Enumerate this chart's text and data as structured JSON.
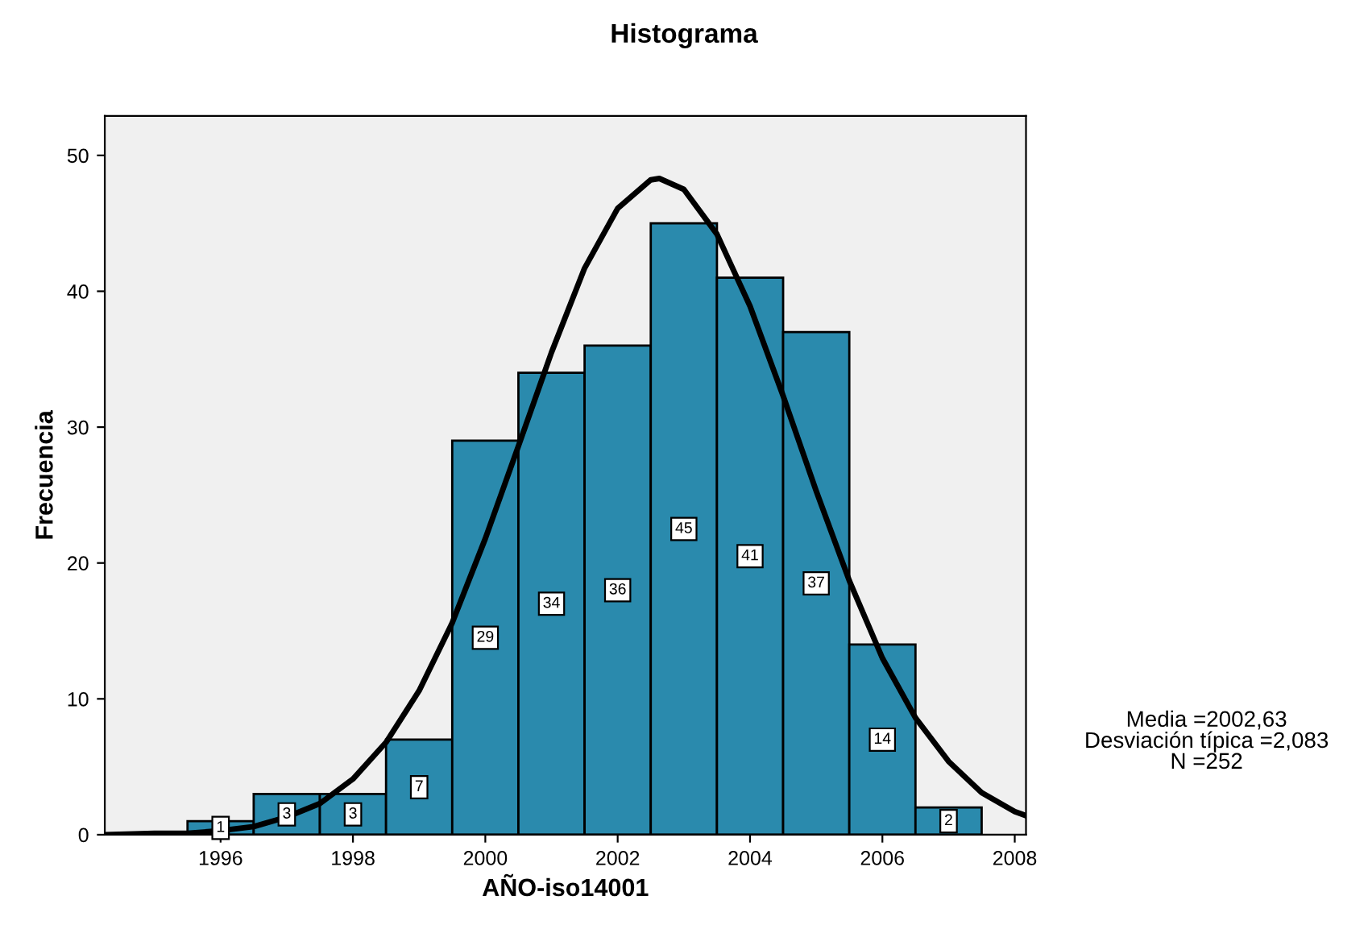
{
  "chart_data": {
    "type": "histogram",
    "title": "Histograma",
    "xlabel": "AÑO-iso14001",
    "ylabel": "Frecuencia",
    "bins": [
      1995.5,
      1996.5,
      1997.5,
      1998.5,
      1999.5,
      2000.5,
      2001.5,
      2002.5,
      2003.5,
      2004.5,
      2005.5,
      2006.5,
      2007.5
    ],
    "series": [
      {
        "color": "#2a8aad",
        "values": [
          1,
          3,
          3,
          7,
          29,
          34,
          36,
          45,
          41,
          37,
          14,
          2
        ],
        "value_labels": [
          "1",
          "3",
          "3",
          "7",
          "29",
          "34",
          "36",
          "45",
          "41",
          "37",
          "14",
          "2"
        ]
      },
      {
        "type": "line",
        "color": "#000000",
        "x": [
          1994.25,
          1995,
          1995.5,
          1996,
          1996.5,
          1997,
          1997.5,
          1998,
          1998.5,
          1999,
          1999.5,
          2000,
          2000.5,
          2001,
          2001.5,
          2002,
          2002.5,
          2002.63,
          2003,
          2003.5,
          2004,
          2004.5,
          2005,
          2005.5,
          2006,
          2006.5,
          2007,
          2007.5,
          2008,
          2008.17
        ],
        "values": [
          0.0,
          0.1,
          0.1,
          0.3,
          0.6,
          1.3,
          2.3,
          4.1,
          6.8,
          10.6,
          15.6,
          21.8,
          28.6,
          35.5,
          41.7,
          46.1,
          48.2,
          48.3,
          47.5,
          44.2,
          38.9,
          32.3,
          25.3,
          18.7,
          13.0,
          8.6,
          5.4,
          3.1,
          1.7,
          1.4
        ]
      }
    ],
    "xlim": [
      1994.25,
      2008.17
    ],
    "ylim": [
      0,
      52.9
    ],
    "xticks": [
      1996,
      1998,
      2000,
      2002,
      2004,
      2006,
      2008
    ],
    "yticks": [
      0,
      10,
      20,
      30,
      40,
      50
    ],
    "grid": false,
    "legend": false,
    "annotations": [
      "Media =2002,63",
      "Desviación típica =2,083",
      "N =252"
    ]
  }
}
